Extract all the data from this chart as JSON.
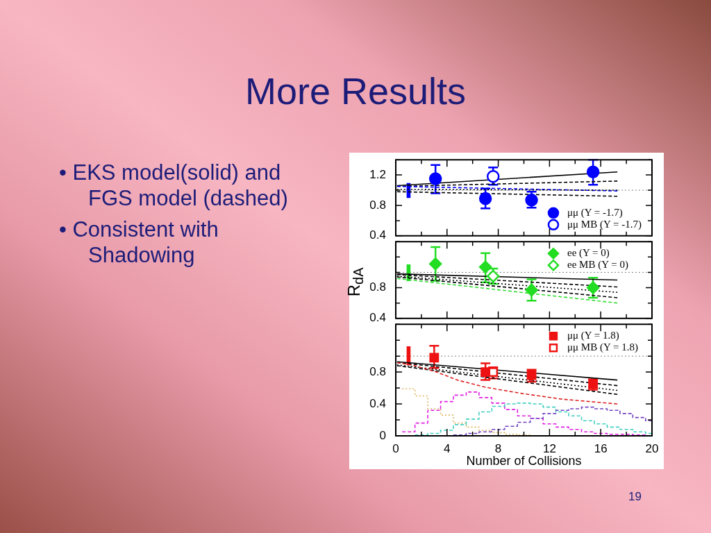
{
  "chart_data": [
    {
      "type": "other",
      "title": "More Results",
      "annotations": [
        "• EKS model(solid) and FGS model (dashed)",
        "• Consistent with Shadowing",
        "19"
      ]
    },
    {
      "type": "scatter",
      "xlim": [
        0,
        20
      ],
      "xticks": [
        0,
        {
          "value": 2,
          "label": null
        },
        4,
        {
          "value": 6,
          "label": null
        },
        8,
        {
          "value": 10,
          "label": null
        },
        12,
        {
          "value": 14,
          "label": null
        },
        16,
        {
          "value": 18,
          "label": null
        },
        20
      ],
      "ylim": [
        0.4,
        1.4
      ],
      "yticks": [
        0.4,
        {
          "value": 0.6,
          "label": null
        },
        0.8,
        {
          "value": 1.0,
          "label": null
        },
        1.2,
        {
          "value": 1.4,
          "label": null
        }
      ],
      "tick_labels": "y",
      "legend": "bottom right",
      "ref_lines": [
        {
          "axis": "y",
          "value": 1,
          "line_style": "dotted",
          "color": "#808080"
        }
      ],
      "series": [
        {
          "type": "bar",
          "color": "#0000ff",
          "x": [
            1
          ],
          "base": [
            0.9
          ],
          "values": [
            0.19
          ]
        },
        {
          "type": "line",
          "color": "#000000",
          "line_style": "solid",
          "x": [
            0.1,
            17.3
          ],
          "values": [
            1.06,
            1.24
          ]
        },
        {
          "type": "line",
          "color": "#000000",
          "line_style": "dashed",
          "x": [
            0.1,
            17.3
          ],
          "values": [
            1.05,
            1.12
          ]
        },
        {
          "type": "line",
          "color": "#0000ff",
          "line_style": "dashed",
          "x": [
            0.1,
            17.3
          ],
          "values": [
            1.05,
            0.99
          ]
        },
        {
          "type": "line",
          "color": "#000000",
          "line_style": "dotted",
          "x": [
            0.1,
            17.3
          ],
          "values": [
            1.01,
            1.0
          ]
        },
        {
          "type": "line",
          "color": "#000000",
          "line_style": "dashed",
          "x": [
            0.1,
            17.3
          ],
          "values": [
            0.98,
            0.92
          ]
        },
        {
          "type": "scatter",
          "name": "μμ (Y = -1.7)",
          "color": "#0000ff",
          "marker": "circle",
          "x": [
            3.1,
            7.0,
            10.6,
            15.4
          ],
          "values": [
            1.15,
            0.89,
            0.87,
            1.24
          ],
          "errors": [
            [
              0.96,
              1.33
            ],
            [
              0.76,
              1.02
            ],
            [
              0.77,
              0.98
            ],
            [
              1.07,
              1.4
            ]
          ]
        },
        {
          "type": "scatter",
          "name": "μμ MB (Y = -1.7)",
          "color": "#0000ff",
          "marker": "circle-open",
          "x": [
            7.6
          ],
          "values": [
            1.18
          ],
          "errors": [
            [
              1.07,
              1.3
            ]
          ]
        }
      ]
    },
    {
      "type": "scatter",
      "ylabel": "R$_{dA}$",
      "xlim": [
        0,
        20
      ],
      "xticks": [
        0,
        {
          "value": 2,
          "label": null
        },
        4,
        {
          "value": 6,
          "label": null
        },
        8,
        {
          "value": 10,
          "label": null
        },
        12,
        {
          "value": 14,
          "label": null
        },
        16,
        {
          "value": 18,
          "label": null
        },
        20
      ],
      "ylim": [
        0.4,
        1.4
      ],
      "yticks": [
        0.4,
        {
          "value": 0.6,
          "label": null
        },
        0.8,
        {
          "value": 1.0,
          "label": null
        },
        {
          "value": 1.2,
          "label": null
        },
        {
          "value": 1.4,
          "label": null
        }
      ],
      "tick_labels": "y",
      "legend": "top right",
      "ref_lines": [
        {
          "axis": "y",
          "value": 1,
          "line_style": "dotted",
          "color": "#808080"
        }
      ],
      "series": [
        {
          "type": "bar",
          "color": "#22dd22",
          "x": [
            1
          ],
          "base": [
            0.89
          ],
          "values": [
            0.21
          ]
        },
        {
          "type": "line",
          "color": "#000000",
          "line_style": "solid",
          "x": [
            0.1,
            17.3
          ],
          "values": [
            0.98,
            0.9
          ]
        },
        {
          "type": "line",
          "color": "#000000",
          "line_style": "dashed",
          "x": [
            0.1,
            17.3
          ],
          "values": [
            0.97,
            0.81
          ]
        },
        {
          "type": "line",
          "color": "#000000",
          "line_style": "dotted",
          "x": [
            0.1,
            17.3
          ],
          "values": [
            0.95,
            0.74
          ]
        },
        {
          "type": "line",
          "color": "#000000",
          "line_style": "dashed",
          "x": [
            0.1,
            17.3
          ],
          "values": [
            0.94,
            0.67
          ]
        },
        {
          "type": "line",
          "color": "#33dd33",
          "line_style": "dashed",
          "x": [
            0.1,
            17.3
          ],
          "values": [
            0.92,
            0.6
          ]
        },
        {
          "type": "scatter",
          "name": "ee (Y = 0)",
          "color": "#22dd22",
          "marker": "diamond",
          "x": [
            3.1,
            7.0,
            10.6,
            15.4
          ],
          "values": [
            1.11,
            1.07,
            0.77,
            0.8
          ],
          "errors": [
            [
              0.89,
              1.33
            ],
            [
              0.87,
              1.25
            ],
            [
              0.63,
              0.91
            ],
            [
              0.67,
              0.93
            ]
          ]
        },
        {
          "type": "scatter",
          "name": "ee MB (Y = 0)",
          "color": "#22dd22",
          "marker": "diamond-open",
          "x": [
            7.6
          ],
          "values": [
            0.95
          ],
          "errors": [
            [
              0.85,
              1.05
            ]
          ]
        }
      ]
    },
    {
      "type": "scatter",
      "xlabel": "Number of Collisions",
      "xlim": [
        0,
        20
      ],
      "xticks": [
        0,
        {
          "value": 2,
          "label": null
        },
        4,
        {
          "value": 6,
          "label": null
        },
        8,
        {
          "value": 10,
          "label": null
        },
        12,
        {
          "value": 14,
          "label": null
        },
        16,
        {
          "value": 18,
          "label": null
        },
        20
      ],
      "ylim": [
        0,
        1.4
      ],
      "yticks": [
        0,
        {
          "value": 0.2,
          "label": null
        },
        0.4,
        {
          "value": 0.6,
          "label": null
        },
        0.8,
        {
          "value": 1.0,
          "label": null
        },
        {
          "value": 1.2,
          "label": null
        },
        {
          "value": 1.4,
          "label": null
        }
      ],
      "legend": "top right",
      "ref_lines": [
        {
          "axis": "y",
          "value": 1,
          "line_style": "dotted",
          "color": "#808080"
        }
      ],
      "series": [
        {
          "type": "step",
          "color": "#d9b35c",
          "line_style": "dotted",
          "x": [
            0.5,
            1.5,
            2.5,
            3.5,
            4.5,
            5.5,
            6.5,
            7.5,
            8.5,
            9.5,
            10.5
          ],
          "values": [
            0.59,
            0.5,
            0.34,
            0.26,
            0.16,
            0.11,
            0.07,
            0.04,
            0.02,
            0.01,
            0.01
          ]
        },
        {
          "type": "step",
          "color": "#e020e0",
          "line_style": "dashed",
          "x": [
            0.5,
            1.5,
            2.5,
            3.5,
            4.5,
            5.5,
            6.5,
            7.5,
            8.5,
            9.5,
            10.5,
            11.5,
            12.5,
            13.5,
            14.5,
            15.5,
            16.5,
            17.5,
            18.5,
            19.5
          ],
          "values": [
            0.05,
            0.16,
            0.32,
            0.43,
            0.51,
            0.55,
            0.48,
            0.41,
            0.33,
            0.25,
            0.22,
            0.15,
            0.11,
            0.08,
            0.05,
            0.03,
            0.02,
            0.02,
            0.01,
            0.01
          ]
        },
        {
          "type": "step",
          "color": "#40d0c0",
          "line_style": "dashed",
          "x": [
            1.5,
            2.5,
            3.5,
            4.5,
            5.5,
            6.5,
            7.5,
            8.5,
            9.5,
            10.5,
            11.5,
            12.5,
            13.5,
            14.5,
            15.5,
            16.5,
            17.5,
            18.5,
            19.5,
            20
          ],
          "values": [
            0.01,
            0.03,
            0.07,
            0.14,
            0.21,
            0.3,
            0.37,
            0.4,
            0.41,
            0.4,
            0.36,
            0.3,
            0.25,
            0.19,
            0.15,
            0.11,
            0.08,
            0.05,
            0.03,
            0.03
          ]
        },
        {
          "type": "step",
          "color": "#7040c0",
          "line_style": "dashed",
          "x": [
            4.5,
            5.5,
            6.5,
            7.5,
            8.5,
            9.5,
            10.5,
            11.5,
            12.5,
            13.5,
            14.5,
            15.5,
            16.5,
            17.5,
            18.5,
            19.5,
            20
          ],
          "values": [
            0.01,
            0.03,
            0.05,
            0.08,
            0.12,
            0.17,
            0.22,
            0.28,
            0.32,
            0.34,
            0.36,
            0.34,
            0.32,
            0.28,
            0.23,
            0.19,
            0.19
          ]
        },
        {
          "type": "bar",
          "color": "#ee1111",
          "x": [
            1
          ],
          "base": [
            0.89
          ],
          "values": [
            0.23
          ]
        },
        {
          "type": "line",
          "color": "#000000",
          "line_style": "solid",
          "x": [
            0.1,
            17.3
          ],
          "values": [
            0.93,
            0.7
          ]
        },
        {
          "type": "line",
          "color": "#000000",
          "line_style": "dashed",
          "x": [
            0.1,
            17.3
          ],
          "values": [
            0.92,
            0.63
          ]
        },
        {
          "type": "line",
          "color": "#000000",
          "line_style": "dotted",
          "x": [
            0.1,
            17.3
          ],
          "values": [
            0.89,
            0.57
          ]
        },
        {
          "type": "line",
          "color": "#000000",
          "line_style": "dashed",
          "x": [
            0.1,
            17.3
          ],
          "values": [
            0.88,
            0.52
          ]
        },
        {
          "type": "line",
          "color": "#dd2222",
          "line_style": "dashed",
          "x": [
            0.1,
            1.5,
            3.2,
            4.8,
            7.0,
            9.9,
            13.0,
            17.3
          ],
          "values": [
            0.92,
            0.88,
            0.8,
            0.7,
            0.61,
            0.53,
            0.46,
            0.4
          ]
        },
        {
          "type": "scatter",
          "name": "μμ (Y = 1.8)",
          "color": "#ee1111",
          "marker": "square",
          "x": [
            3.0,
            7.0,
            10.6,
            15.4
          ],
          "values": [
            0.98,
            0.8,
            0.76,
            0.65
          ],
          "errors": [
            [
              0.85,
              1.13
            ],
            [
              0.7,
              0.91
            ],
            [
              0.68,
              0.83
            ],
            [
              0.58,
              0.71
            ]
          ]
        },
        {
          "type": "scatter",
          "name": "μμ MB (Y = 1.8)",
          "color": "#ee1111",
          "marker": "square-open",
          "x": [
            7.6
          ],
          "values": [
            0.8
          ],
          "errors": [
            [
              0.72,
              0.86
            ]
          ]
        }
      ]
    }
  ]
}
